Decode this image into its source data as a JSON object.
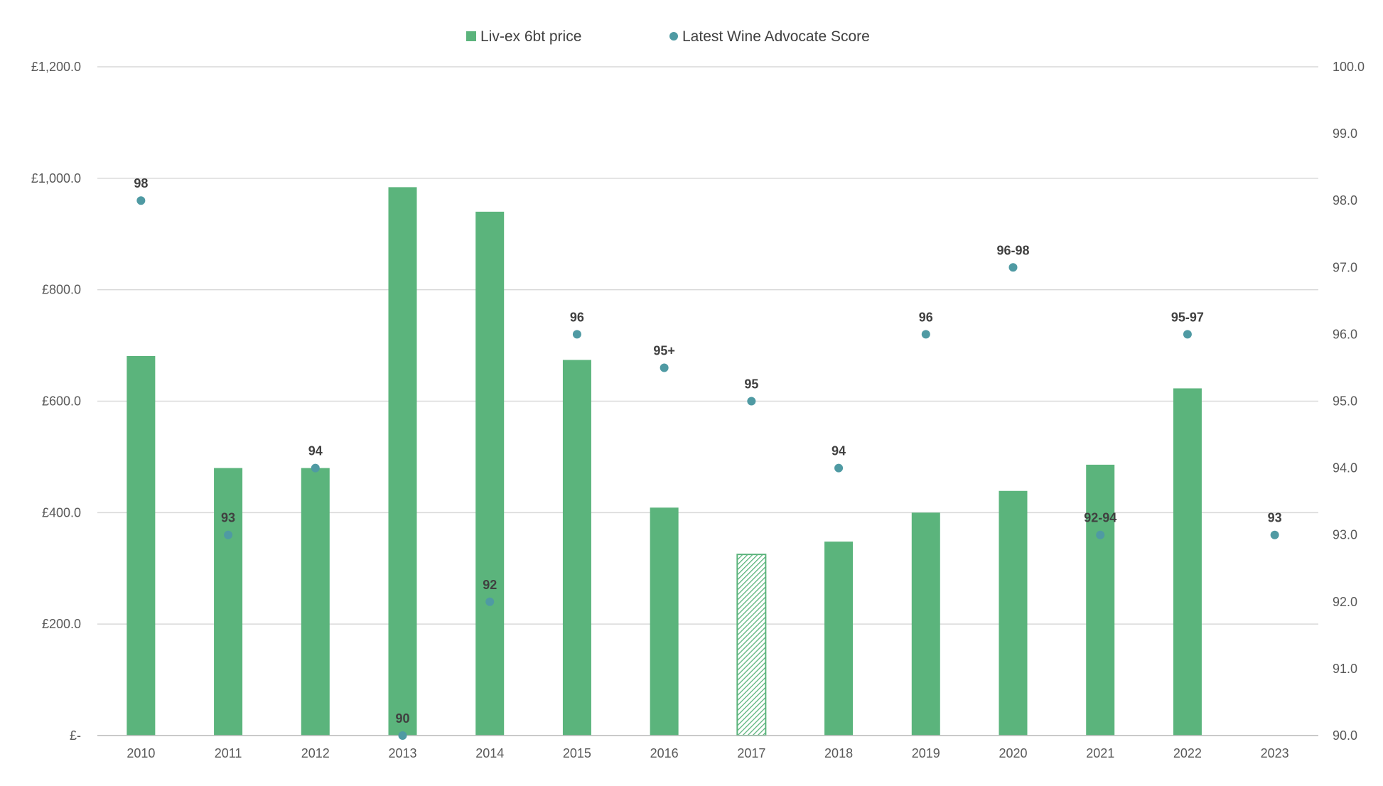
{
  "chart_data": {
    "type": "bar",
    "categories": [
      "2010",
      "2011",
      "2012",
      "2013",
      "2014",
      "2015",
      "2016",
      "2017",
      "2018",
      "2019",
      "2020",
      "2021",
      "2022",
      "2023"
    ],
    "series": [
      {
        "name": "Liv-ex 6bt price",
        "type": "bar",
        "axis": "left",
        "color": "#5bb47c",
        "values": [
          681,
          480,
          480,
          984,
          940,
          674,
          409,
          325,
          348,
          400,
          439,
          486,
          623,
          null
        ],
        "hatched_categories": [
          "2017"
        ]
      },
      {
        "name": "Latest Wine Advocate Score",
        "type": "scatter",
        "axis": "right",
        "color": "#4f9aa3",
        "values": [
          98,
          93,
          94,
          90,
          92,
          96,
          95.5,
          95,
          94,
          96,
          97,
          93,
          96,
          93
        ],
        "labels": [
          "98",
          "93",
          "94",
          "90",
          "92",
          "96",
          "95+",
          "95",
          "94",
          "96",
          "96-98",
          "92-94",
          "95-97",
          "93"
        ]
      }
    ],
    "y_left": {
      "ylim": [
        0,
        1200
      ],
      "ticks": [
        0,
        200,
        400,
        600,
        800,
        1000,
        1200
      ],
      "tick_labels": [
        "£-",
        "£200.0",
        "£400.0",
        "£600.0",
        "£800.0",
        "£1,000.0",
        "£1,200.0"
      ]
    },
    "y_right": {
      "ylim": [
        90,
        100
      ],
      "ticks": [
        90,
        91,
        92,
        93,
        94,
        95,
        96,
        97,
        98,
        99,
        100
      ],
      "tick_labels": [
        "90.0",
        "91.0",
        "92.0",
        "93.0",
        "94.0",
        "95.0",
        "96.0",
        "97.0",
        "98.0",
        "99.0",
        "100.0"
      ]
    },
    "legend": {
      "position": "top-center",
      "entries": [
        "Liv-ex 6bt price",
        "Latest Wine Advocate Score"
      ]
    },
    "grid": true,
    "gridline_color": "#d9d9d9"
  }
}
